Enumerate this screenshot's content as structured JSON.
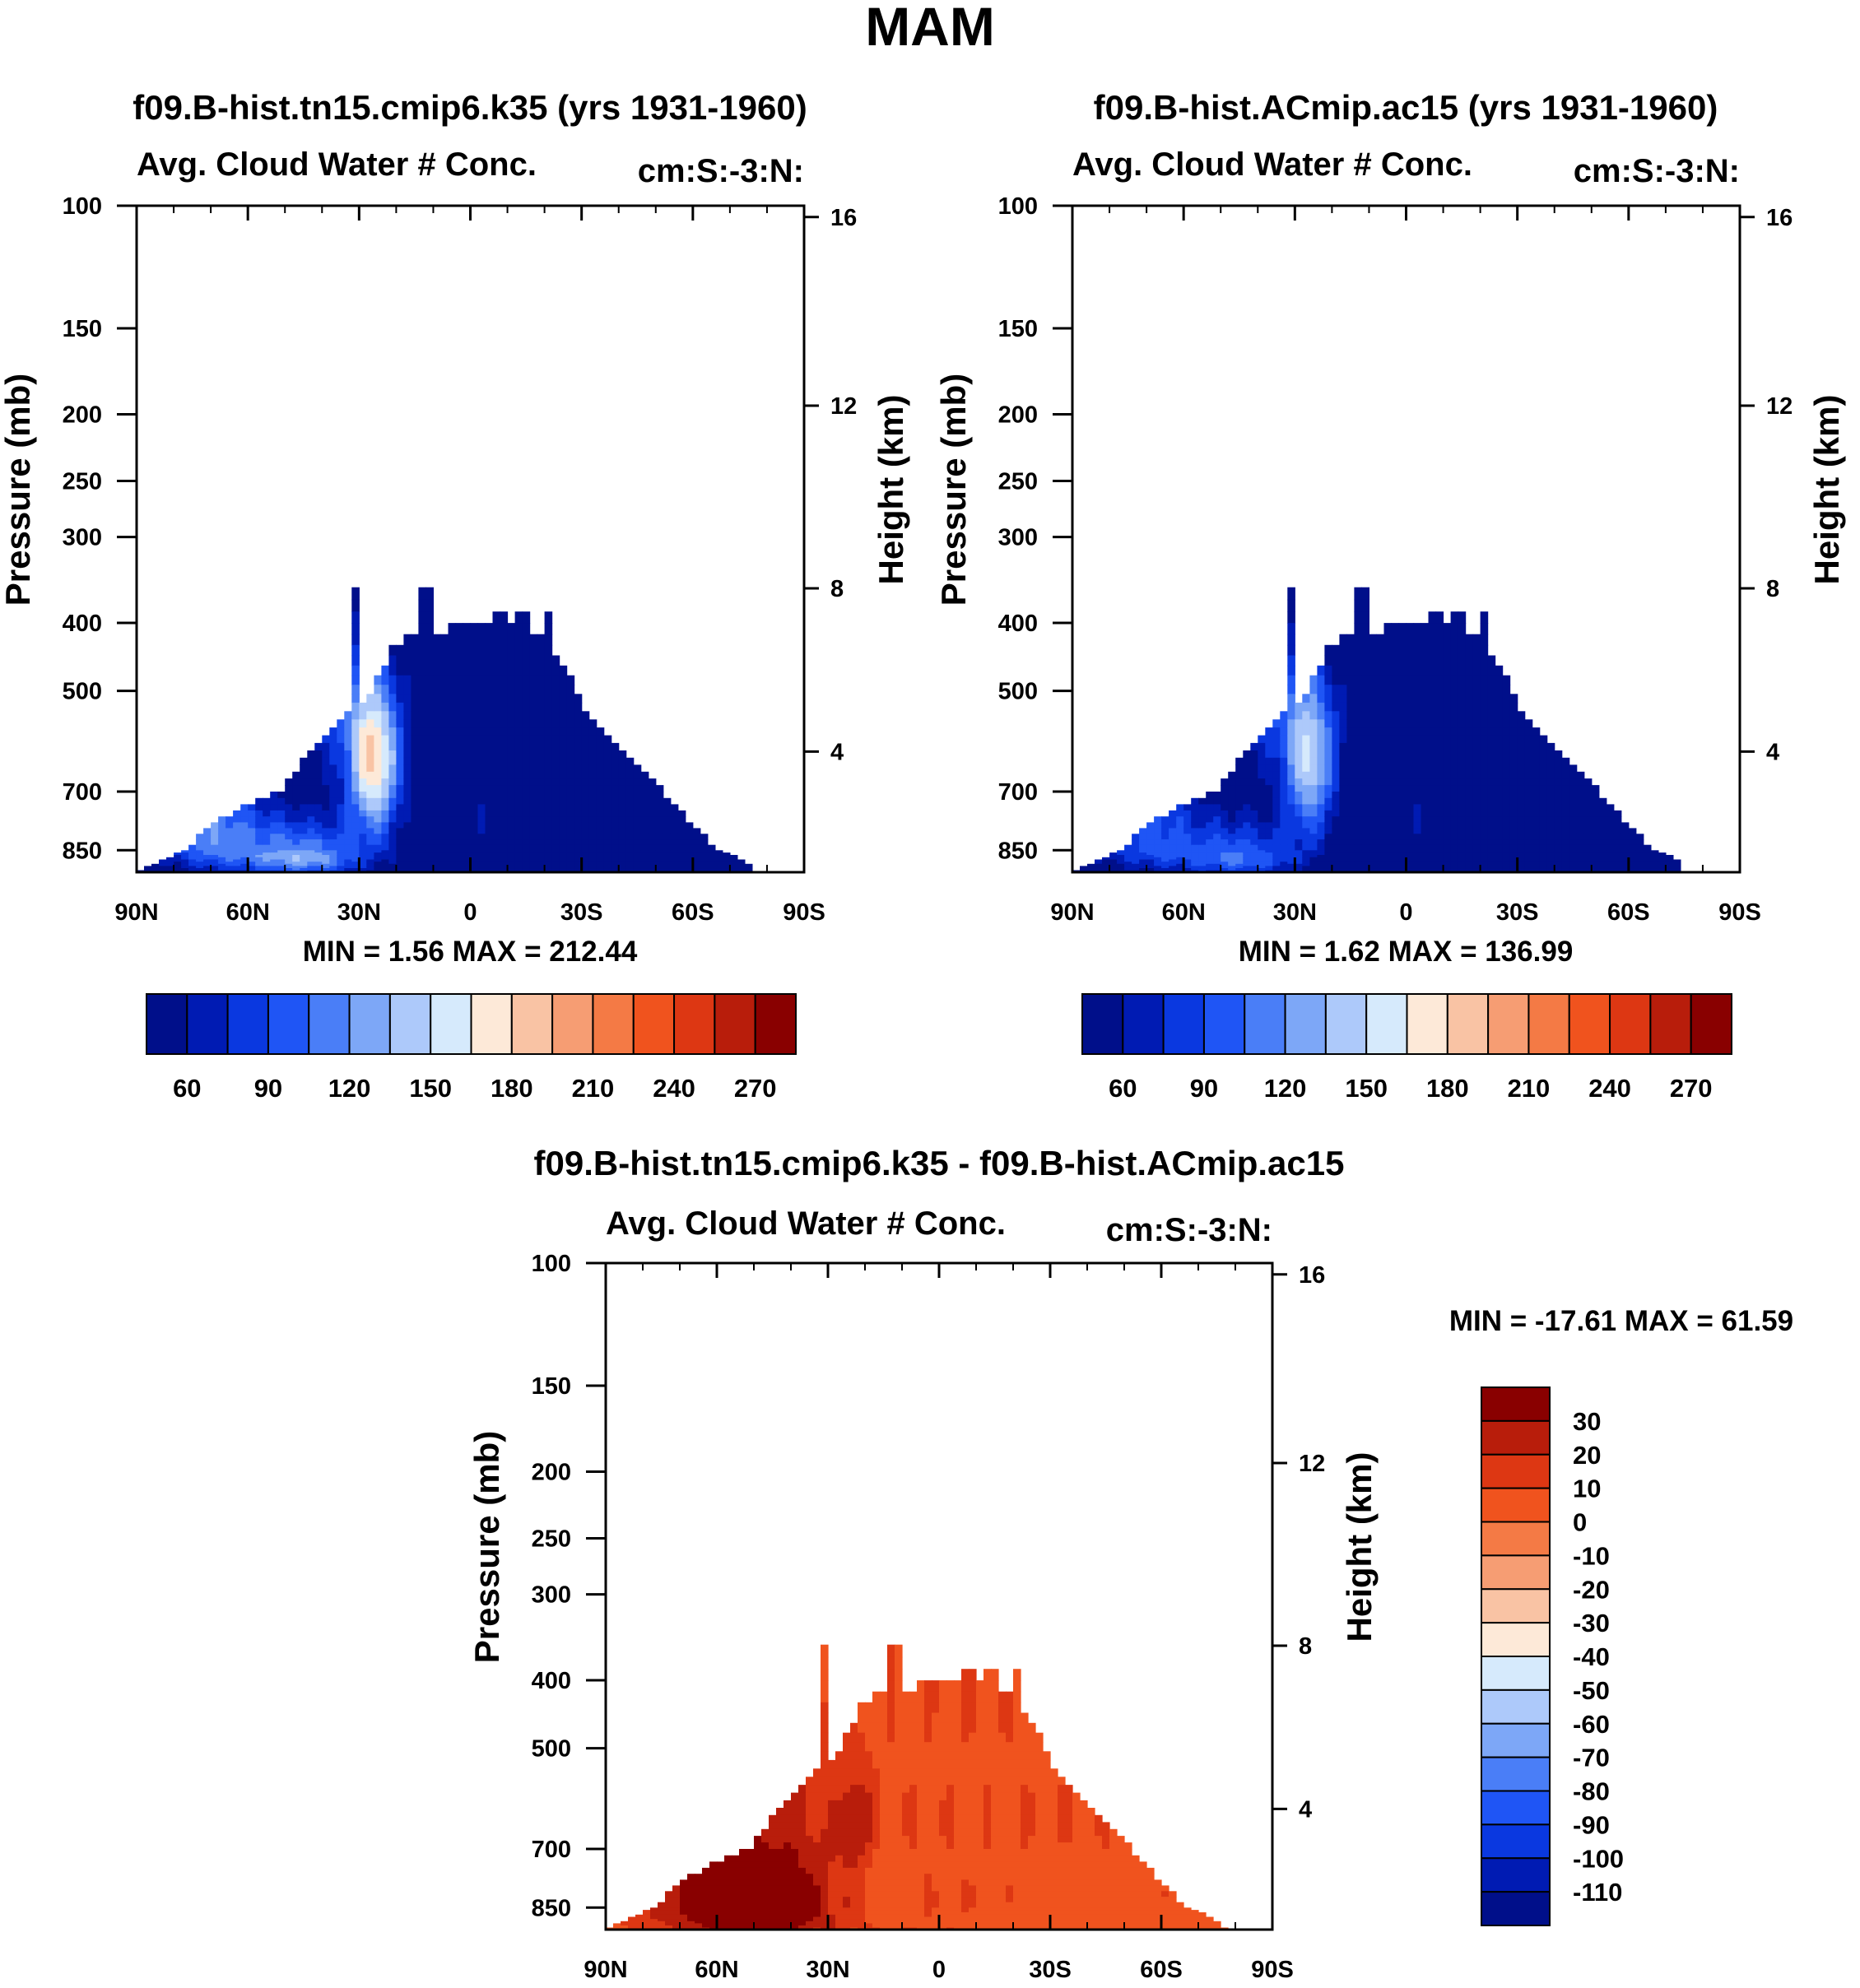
{
  "figure": {
    "title": "MAM"
  },
  "colorbar_colors": {
    "abs": [
      "#000f8a",
      "#001bb3",
      "#0a38e0",
      "#1f55f5",
      "#4a7ef7",
      "#7da7f7",
      "#adc9fa",
      "#d6eafc",
      "#fde9d8",
      "#f9c3a4",
      "#f69d73",
      "#f47a45",
      "#f0531e",
      "#dd3713",
      "#b81d0b",
      "#890000"
    ],
    "diff": [
      "#890000",
      "#b81d0b",
      "#dd3713",
      "#f0531e",
      "#f47a45",
      "#f69d73",
      "#f9c3a4",
      "#fde9d8",
      "#d6eafc",
      "#adc9fa",
      "#7da7f7",
      "#4a7ef7",
      "#1f55f5",
      "#0a38e0",
      "#001bb3",
      "#000f8a"
    ]
  },
  "chart_data": [
    {
      "type": "heatmap",
      "title": "f09.B-hist.tn15.cmip6.k35 (yrs 1931-1960)",
      "left_subtitle": "Avg. Cloud Water # Conc.",
      "right_subtitle": "cm:S:-3:N:",
      "xlabel": "",
      "ylabel": "Pressure (mb)",
      "ylabel_right": "Height (km)",
      "x_ticks": [
        "90N",
        "60N",
        "30N",
        "0",
        "30S",
        "60S",
        "90S"
      ],
      "y_ticks": [
        "100",
        "150",
        "200",
        "250",
        "300",
        "400",
        "500",
        "700",
        "850"
      ],
      "y_ticks_right": [
        "16",
        "12",
        "8",
        "4"
      ],
      "ylim": [
        100,
        1000
      ],
      "xlim": [
        90,
        -90
      ],
      "min_max_text": "MIN =   1.56   MAX = 212.44",
      "colorbar_labels": [
        "60",
        "90",
        "120",
        "150",
        "180",
        "210",
        "240",
        "270"
      ],
      "colorbar_orientation": "horizontal"
    },
    {
      "type": "heatmap",
      "title": "f09.B-hist.ACmip.ac15 (yrs 1931-1960)",
      "left_subtitle": "Avg. Cloud Water # Conc.",
      "right_subtitle": "cm:S:-3:N:",
      "xlabel": "",
      "ylabel": "Pressure (mb)",
      "ylabel_right": "Height (km)",
      "x_ticks": [
        "90N",
        "60N",
        "30N",
        "0",
        "30S",
        "60S",
        "90S"
      ],
      "y_ticks": [
        "100",
        "150",
        "200",
        "250",
        "300",
        "400",
        "500",
        "700",
        "850"
      ],
      "y_ticks_right": [
        "16",
        "12",
        "8",
        "4"
      ],
      "ylim": [
        100,
        1000
      ],
      "xlim": [
        90,
        -90
      ],
      "min_max_text": "MIN =   1.62   MAX = 136.99",
      "colorbar_labels": [
        "60",
        "90",
        "120",
        "150",
        "180",
        "210",
        "240",
        "270"
      ],
      "colorbar_orientation": "horizontal"
    },
    {
      "type": "heatmap",
      "title": "f09.B-hist.tn15.cmip6.k35 - f09.B-hist.ACmip.ac15",
      "left_subtitle": "Avg. Cloud Water # Conc.",
      "right_subtitle": "cm:S:-3:N:",
      "xlabel": "",
      "ylabel": "Pressure (mb)",
      "ylabel_right": "Height (km)",
      "x_ticks": [
        "90N",
        "60N",
        "30N",
        "0",
        "30S",
        "60S",
        "90S"
      ],
      "y_ticks": [
        "100",
        "150",
        "200",
        "250",
        "300",
        "400",
        "500",
        "700",
        "850"
      ],
      "y_ticks_right": [
        "16",
        "12",
        "8",
        "4"
      ],
      "ylim": [
        100,
        1000
      ],
      "xlim": [
        90,
        -90
      ],
      "min_max_text": "MIN = -17.61   MAX =  61.59",
      "colorbar_labels": [
        "30",
        "20",
        "10",
        "0",
        "-10",
        "-20",
        "-30",
        "-40",
        "-50",
        "-60",
        "-70",
        "-80",
        "-90",
        "-100",
        "-110"
      ],
      "colorbar_orientation": "vertical"
    }
  ]
}
